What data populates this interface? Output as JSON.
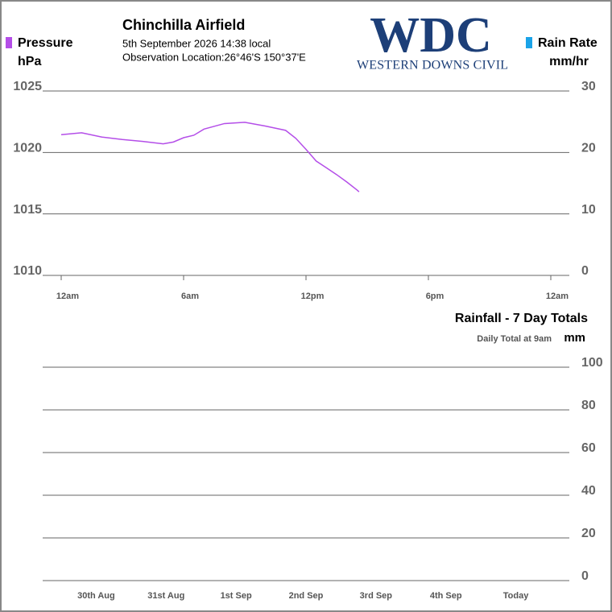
{
  "header": {
    "title": "Chinchilla Airfield",
    "datetime": "5th September 2026  14:38 local",
    "location": "Observation Location:26°46'S 150°37'E",
    "logo_text": "WDC",
    "logo_subtext": "WESTERN DOWNS CIVIL"
  },
  "chart_data": [
    {
      "type": "line",
      "y_label": "hPa",
      "y2_label": "mm/hr",
      "xlim": [
        0,
        24
      ],
      "xticks": [
        {
          "value": 0,
          "label": "12am"
        },
        {
          "value": 6,
          "label": "6am"
        },
        {
          "value": 12,
          "label": "12pm"
        },
        {
          "value": 18,
          "label": "6pm"
        },
        {
          "value": 24,
          "label": "12am"
        }
      ],
      "ylim": [
        1010,
        1025
      ],
      "yticks": [
        1010,
        1015,
        1020,
        1025
      ],
      "y2lim": [
        0,
        30
      ],
      "y2ticks": [
        0,
        10,
        20,
        30
      ],
      "grid": true,
      "series": [
        {
          "name": "Pressure",
          "color": "#b44ee8",
          "x": [
            0,
            1,
            2,
            3,
            4,
            5,
            5.5,
            6,
            6.5,
            7,
            8,
            9,
            10,
            11,
            11.5,
            12,
            12.5,
            13,
            13.5,
            14,
            14.5,
            14.6
          ],
          "values": [
            1021.45,
            1021.6,
            1021.25,
            1021.05,
            1020.9,
            1020.7,
            1020.85,
            1021.2,
            1021.4,
            1021.9,
            1022.35,
            1022.45,
            1022.15,
            1021.8,
            1021.15,
            1020.25,
            1019.3,
            1018.75,
            1018.2,
            1017.6,
            1016.95,
            1016.8
          ]
        },
        {
          "name": "Rain Rate",
          "color": "#1aa3e8",
          "axis": "y2",
          "x": [],
          "values": []
        }
      ]
    },
    {
      "type": "bar",
      "title": "Rainfall - 7 Day Totals",
      "subtitle": "Daily Total at 9am",
      "y_label": "mm",
      "categories": [
        "30th Aug",
        "31st Aug",
        "1st Sep",
        "2nd Sep",
        "3rd Sep",
        "4th Sep",
        "Today"
      ],
      "values": [
        0,
        0,
        0,
        0,
        0,
        0,
        0
      ],
      "color": "#1aa3e8",
      "ylim": [
        0,
        100
      ],
      "yticks": [
        0,
        20,
        40,
        60,
        80,
        100
      ],
      "grid": true
    }
  ]
}
